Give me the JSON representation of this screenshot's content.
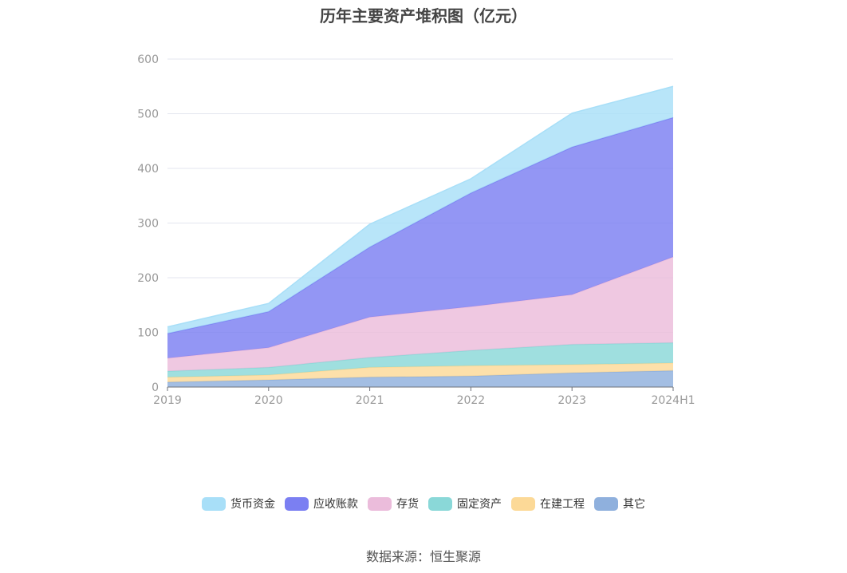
{
  "chart_data": {
    "type": "area",
    "stacked": true,
    "title": "历年主要资产堆积图（亿元）",
    "categories": [
      "2019",
      "2020",
      "2021",
      "2022",
      "2023",
      "2024H1"
    ],
    "ylim": [
      0,
      600
    ],
    "yticks": [
      0,
      100,
      200,
      300,
      400,
      500,
      600
    ],
    "grid": true,
    "legend_position": "bottom",
    "series": [
      {
        "name": "其它",
        "color": "#8fb0dd",
        "values": [
          9,
          13,
          18,
          20,
          26,
          30
        ]
      },
      {
        "name": "在建工程",
        "color": "#fcd997",
        "values": [
          9,
          9,
          18,
          19,
          15,
          14
        ]
      },
      {
        "name": "固定资产",
        "color": "#8ad8d8",
        "values": [
          11,
          14,
          18,
          28,
          37,
          37
        ]
      },
      {
        "name": "存货",
        "color": "#ebbcdb",
        "values": [
          24,
          36,
          74,
          80,
          91,
          157
        ]
      },
      {
        "name": "应收账款",
        "color": "#7b7ff2",
        "values": [
          45,
          66,
          128,
          208,
          270,
          255
        ]
      },
      {
        "name": "货币资金",
        "color": "#a8dff8",
        "values": [
          12,
          15,
          42,
          26,
          62,
          57
        ]
      }
    ]
  },
  "legend_order": [
    "货币资金",
    "应收账款",
    "存货",
    "固定资产",
    "在建工程",
    "其它"
  ],
  "source": "数据来源：恒生聚源"
}
